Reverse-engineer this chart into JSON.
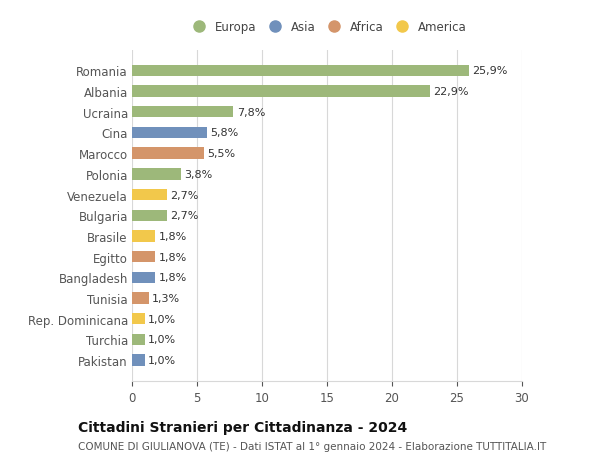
{
  "categories": [
    "Pakistan",
    "Turchia",
    "Rep. Dominicana",
    "Tunisia",
    "Bangladesh",
    "Egitto",
    "Brasile",
    "Bulgaria",
    "Venezuela",
    "Polonia",
    "Marocco",
    "Cina",
    "Ucraina",
    "Albania",
    "Romania"
  ],
  "values": [
    1.0,
    1.0,
    1.0,
    1.3,
    1.8,
    1.8,
    1.8,
    2.7,
    2.7,
    3.8,
    5.5,
    5.8,
    7.8,
    22.9,
    25.9
  ],
  "labels": [
    "1,0%",
    "1,0%",
    "1,0%",
    "1,3%",
    "1,8%",
    "1,8%",
    "1,8%",
    "2,7%",
    "2,7%",
    "3,8%",
    "5,5%",
    "5,8%",
    "7,8%",
    "22,9%",
    "25,9%"
  ],
  "colors": [
    "#7090bb",
    "#9db87a",
    "#f2c84b",
    "#d4956a",
    "#7090bb",
    "#d4956a",
    "#f2c84b",
    "#9db87a",
    "#f2c84b",
    "#9db87a",
    "#d4956a",
    "#7090bb",
    "#9db87a",
    "#9db87a",
    "#9db87a"
  ],
  "legend_labels": [
    "Europa",
    "Asia",
    "Africa",
    "America"
  ],
  "legend_colors": [
    "#9db87a",
    "#7090bb",
    "#d4956a",
    "#f2c84b"
  ],
  "xlim": [
    0,
    30
  ],
  "xticks": [
    0,
    5,
    10,
    15,
    20,
    25,
    30
  ],
  "title": "Cittadini Stranieri per Cittadinanza - 2024",
  "subtitle": "COMUNE DI GIULIANOVA (TE) - Dati ISTAT al 1° gennaio 2024 - Elaborazione TUTTITALIA.IT",
  "background_color": "#ffffff",
  "grid_color": "#d8d8d8",
  "bar_height": 0.55,
  "label_fontsize": 8,
  "axis_fontsize": 8.5,
  "title_fontsize": 10,
  "subtitle_fontsize": 7.5
}
